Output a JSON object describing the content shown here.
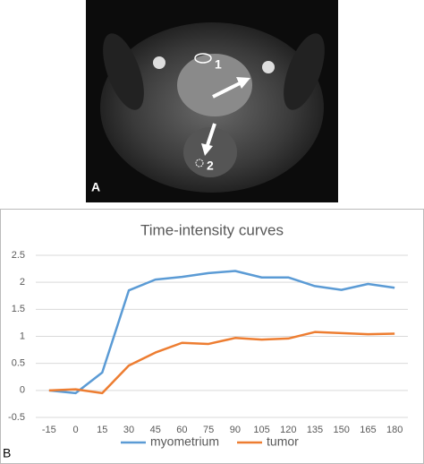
{
  "panel_labels": [
    "A",
    "B"
  ],
  "image_markers": [
    "1",
    "2"
  ],
  "chart_data": {
    "type": "line",
    "title": "Time-intensity curves",
    "categories": [
      "-15",
      "0",
      "15",
      "30",
      "45",
      "60",
      "75",
      "90",
      "105",
      "120",
      "135",
      "150",
      "165",
      "180"
    ],
    "series": [
      {
        "name": "myometrium",
        "color": "#5b9bd5",
        "values": [
          0,
          -0.05,
          0.33,
          1.85,
          2.05,
          2.1,
          2.17,
          2.21,
          2.09,
          2.09,
          1.93,
          1.86,
          1.97,
          1.9
        ]
      },
      {
        "name": "tumor",
        "color": "#ed7d31",
        "values": [
          0,
          0.02,
          -0.05,
          0.46,
          0.7,
          0.88,
          0.86,
          0.97,
          0.94,
          0.96,
          1.08,
          1.06,
          1.04,
          1.05
        ]
      }
    ],
    "ylim": [
      -0.5,
      2.5
    ],
    "yticks": [
      -0.5,
      0,
      0.5,
      1,
      1.5,
      2,
      2.5
    ],
    "grid": true,
    "legend": "bottom"
  }
}
